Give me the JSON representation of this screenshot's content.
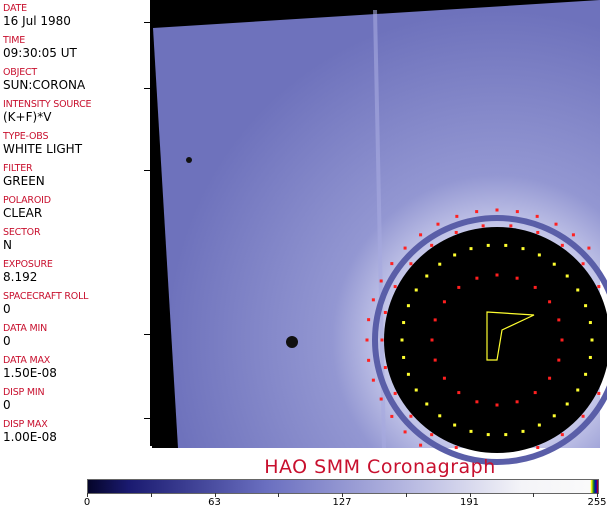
{
  "header_fields": [
    {
      "label": "DATE",
      "value": "16 Jul 1980"
    },
    {
      "label": "TIME",
      "value": "09:30:05 UT"
    },
    {
      "label": "OBJECT",
      "value": "SUN:CORONA"
    },
    {
      "label": "INTENSITY SOURCE",
      "value": "(K+F)*V"
    },
    {
      "label": "TYPE-OBS",
      "value": "WHITE LIGHT"
    },
    {
      "label": "FILTER",
      "value": "GREEN"
    },
    {
      "label": "POLAROID",
      "value": "CLEAR"
    },
    {
      "label": "SECTOR",
      "value": "N"
    },
    {
      "label": "EXPOSURE",
      "value": "8.192"
    },
    {
      "label": "SPACECRAFT ROLL",
      "value": "0"
    },
    {
      "label": "DATA MIN",
      "value": "0"
    },
    {
      "label": "DATA MAX",
      "value": "1.50E-08"
    },
    {
      "label": "DISP MIN",
      "value": "0"
    },
    {
      "label": "DISP MAX",
      "value": "1.00E-08"
    }
  ],
  "title": "HAO   SMM  Coronagraph",
  "colorbar": {
    "ticks": [
      "0",
      "63",
      "127",
      "191",
      "255"
    ],
    "colors": {
      "dark": "#05052a",
      "mid": "#6a6fc0",
      "light": "#f4f4f8"
    }
  },
  "colors": {
    "label": "#c8102e",
    "image_tint": "#7d81c4",
    "marker_red": "#ff2020",
    "marker_yellow": "#ffff30"
  }
}
